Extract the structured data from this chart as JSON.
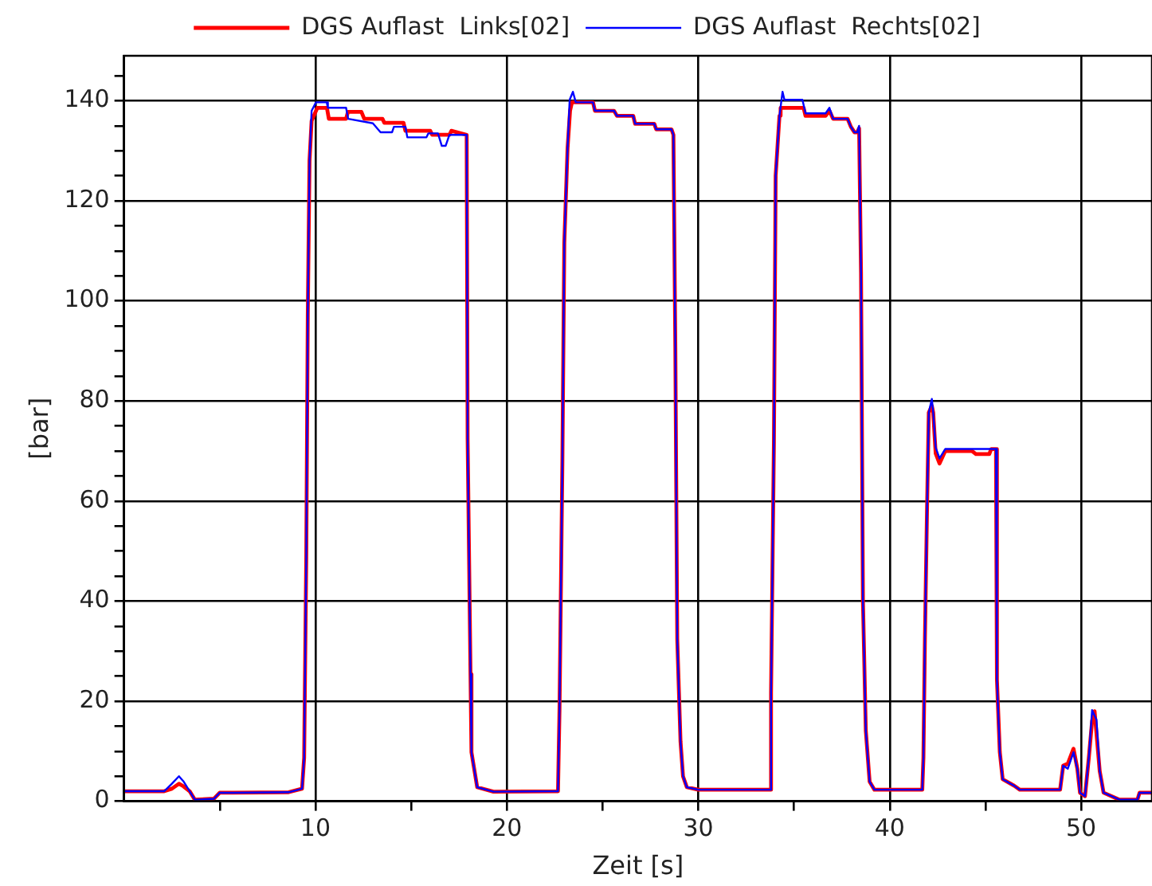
{
  "chart_data": {
    "type": "line",
    "xlabel": "Zeit [s]",
    "ylabel": "[bar]",
    "legend": "top",
    "grid": true,
    "marker": "none",
    "line_style": "solid",
    "xlim": [
      0,
      53.7
    ],
    "ylim": [
      0,
      149
    ],
    "xticks": [
      {
        "value": 5,
        "label": null
      },
      10,
      {
        "value": 15,
        "label": null
      },
      20,
      {
        "value": 25,
        "label": null
      },
      30,
      {
        "value": 35,
        "label": null
      },
      40,
      {
        "value": 45,
        "label": null
      },
      50
    ],
    "yticks": [
      0,
      {
        "value": 5,
        "label": null
      },
      {
        "value": 10,
        "label": null
      },
      {
        "value": 15,
        "label": null
      },
      20,
      {
        "value": 25,
        "label": null
      },
      {
        "value": 30,
        "label": null
      },
      {
        "value": 35,
        "label": null
      },
      40,
      {
        "value": 45,
        "label": null
      },
      {
        "value": 50,
        "label": null
      },
      {
        "value": 55,
        "label": null
      },
      60,
      {
        "value": 65,
        "label": null
      },
      {
        "value": 70,
        "label": null
      },
      {
        "value": 75,
        "label": null
      },
      80,
      {
        "value": 85,
        "label": null
      },
      {
        "value": 90,
        "label": null
      },
      {
        "value": 95,
        "label": null
      },
      100,
      {
        "value": 105,
        "label": null
      },
      {
        "value": 110,
        "label": null
      },
      {
        "value": 115,
        "label": null
      },
      120,
      {
        "value": 125,
        "label": null
      },
      {
        "value": 130,
        "label": null
      },
      {
        "value": 135,
        "label": null
      },
      140,
      {
        "value": 145,
        "label": null
      }
    ],
    "series": [
      {
        "name": "DGS Auflast  Links[02]",
        "color": "#ff0000",
        "x": [
          0,
          2.1,
          2.5,
          2.87,
          3.1,
          3.43,
          3.7,
          4.7,
          5.0,
          5.7,
          8.6,
          9.3,
          9.41,
          9.52,
          9.6,
          9.69,
          9.8,
          10.1,
          10.6,
          10.7,
          11.6,
          11.7,
          12.4,
          12.55,
          13.5,
          13.6,
          14.6,
          14.7,
          16.0,
          16.1,
          17.0,
          17.1,
          17.9,
          17.95,
          18.1,
          18.15,
          18.45,
          19.3,
          22.67,
          22.75,
          22.9,
          23.0,
          23.17,
          23.3,
          23.4,
          24.5,
          24.6,
          25.6,
          25.75,
          26.6,
          26.7,
          27.7,
          27.8,
          28.6,
          28.7,
          28.8,
          28.9,
          29.07,
          29.2,
          29.4,
          30,
          33.76,
          33.8,
          33.95,
          34.04,
          34.24,
          34.3,
          35.5,
          35.6,
          36.65,
          36.85,
          37.04,
          37.8,
          37.97,
          38.16,
          38.3,
          38.4,
          38.5,
          38.6,
          38.75,
          38.95,
          39.2,
          41.7,
          41.76,
          41.84,
          41.95,
          42.04,
          42.2,
          42.27,
          42.4,
          42.6,
          42.9,
          44.3,
          44.5,
          45.2,
          45.3,
          45.55,
          45.6,
          45.75,
          45.9,
          46.5,
          46.8,
          48.9,
          49.06,
          49.3,
          49.6,
          49.8,
          49.94,
          50.2,
          50.4,
          50.57,
          50.7,
          50.97,
          51.17,
          52.0,
          52.94,
          53.05,
          53.7
        ],
        "values": [
          2,
          2,
          2.5,
          3.5,
          3,
          2,
          0.3,
          0.5,
          1.7,
          1.7,
          1.8,
          2.5,
          8.7,
          48.6,
          97,
          128,
          136,
          138.6,
          138.6,
          136.4,
          136.4,
          137.8,
          137.8,
          136.4,
          136.4,
          135.6,
          135.6,
          134,
          134,
          133.2,
          133.2,
          134,
          133.2,
          72.4,
          25.4,
          9.8,
          2.8,
          1.9,
          2.0,
          18.4,
          68,
          111.6,
          130.5,
          138,
          139.7,
          139.7,
          138,
          138,
          137,
          137,
          135.4,
          135.4,
          134.3,
          134.3,
          133.2,
          90.6,
          32.4,
          12,
          5,
          2.8,
          2.3,
          2.3,
          21.7,
          71.8,
          125,
          137,
          138.6,
          138.6,
          137,
          137,
          138,
          136.4,
          136.4,
          134.8,
          133.7,
          133.7,
          134.5,
          105.7,
          40,
          14.1,
          3.9,
          2.3,
          2.3,
          8.7,
          33,
          58.8,
          77.7,
          79,
          77.7,
          69.5,
          67.5,
          70,
          70,
          69.4,
          69.4,
          70.4,
          70.4,
          24.3,
          9.8,
          4.4,
          3.1,
          2.3,
          2.3,
          7.1,
          7.5,
          10.5,
          6.5,
          1.7,
          1,
          8.7,
          16,
          18,
          6,
          1.7,
          0.3,
          0.3,
          1.7,
          1.7
        ]
      },
      {
        "name": "DGS Auflast  Rechts[02]",
        "color": "#0000ff",
        "x": [
          0,
          2.1,
          2.5,
          2.87,
          3.1,
          3.43,
          3.7,
          4.7,
          5.0,
          5.7,
          8.6,
          9.3,
          9.41,
          9.52,
          9.6,
          9.69,
          9.8,
          10.03,
          10.59,
          10.65,
          11.6,
          11.71,
          13.0,
          13.4,
          14.0,
          14.1,
          14.7,
          14.8,
          15.8,
          15.9,
          16.4,
          16.6,
          16.8,
          17.0,
          17.9,
          17.95,
          18.1,
          18.15,
          18.45,
          19.3,
          22.67,
          22.75,
          22.9,
          23.0,
          23.17,
          23.28,
          23.45,
          23.6,
          24.5,
          24.6,
          25.6,
          25.75,
          26.6,
          26.7,
          27.7,
          27.8,
          28.6,
          28.7,
          28.8,
          28.9,
          29.07,
          29.2,
          29.4,
          30,
          33.76,
          33.8,
          33.95,
          34.04,
          34.24,
          34.4,
          34.5,
          35.44,
          35.6,
          36.65,
          36.85,
          37.04,
          37.8,
          37.97,
          38.16,
          38.3,
          38.4,
          38.5,
          38.6,
          38.75,
          38.95,
          39.2,
          41.7,
          41.76,
          41.84,
          41.95,
          42.04,
          42.2,
          42.27,
          42.4,
          42.6,
          42.9,
          45.55,
          45.6,
          45.75,
          45.9,
          46.5,
          46.8,
          48.9,
          49.06,
          49.3,
          49.6,
          49.8,
          49.94,
          50.2,
          50.4,
          50.57,
          50.8,
          50.97,
          51.17,
          52.0,
          52.94,
          53.05,
          53.7
        ],
        "values": [
          2,
          2,
          3.5,
          5,
          4,
          2,
          0.3,
          0.5,
          1.7,
          1.7,
          1.8,
          2.5,
          8.7,
          48.6,
          97,
          128,
          138,
          139.7,
          139.7,
          138.6,
          138.6,
          136.4,
          135.5,
          133.7,
          133.7,
          134.8,
          134.8,
          132.7,
          132.7,
          133.5,
          133.5,
          131,
          131,
          133.2,
          133.2,
          72.4,
          25.4,
          9.8,
          2.8,
          1.9,
          2.0,
          18.4,
          68,
          111.6,
          130.5,
          140.2,
          141.8,
          139.7,
          139.7,
          138,
          138,
          137,
          137,
          135.4,
          135.4,
          134.3,
          134.3,
          133.2,
          90.6,
          32.4,
          12,
          5,
          2.8,
          2.3,
          2.3,
          21.7,
          71.8,
          125,
          137,
          141.8,
          140.2,
          140.2,
          137.5,
          137.5,
          138.6,
          136.4,
          136.4,
          134.8,
          133.7,
          133.7,
          135,
          105.7,
          40,
          14.1,
          3.9,
          2.3,
          2.3,
          8.7,
          33,
          58.8,
          77.7,
          80.4,
          77.7,
          70.7,
          68.5,
          70.4,
          70.4,
          24.3,
          9.8,
          4.4,
          3.1,
          2.3,
          2.3,
          7.1,
          6.5,
          9.8,
          6.5,
          1.7,
          1,
          8.7,
          18.2,
          16.3,
          6,
          1.7,
          0.3,
          0.3,
          1.7,
          1.7
        ]
      }
    ]
  }
}
